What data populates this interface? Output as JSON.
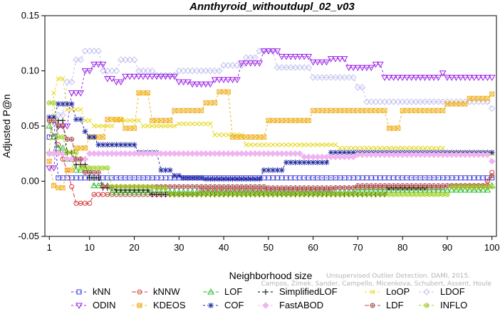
{
  "chart_data": {
    "type": "line",
    "title": "Annthyroid_withoutdupl_02_v03",
    "xlabel": "Neighborhood size",
    "ylabel": "Adjusted P@n",
    "xlim": [
      0,
      101
    ],
    "ylim": [
      -0.05,
      0.15
    ],
    "xticks": [
      "1",
      "10",
      "20",
      "30",
      "40",
      "50",
      "60",
      "70",
      "80",
      "90",
      "100"
    ],
    "yticks": [
      "-0.05",
      "0.00",
      "0.05",
      "0.10",
      "0.15"
    ],
    "grid": false,
    "legend_position": "bottom",
    "series": [
      {
        "name": "kNN",
        "color": "#3a3adf",
        "marker": "square",
        "dash": "3,3",
        "points": [
          [
            1,
            0.04
          ],
          [
            2,
            0.055
          ],
          [
            3,
            0.003
          ],
          [
            10,
            0.003
          ],
          [
            30,
            0.003
          ],
          [
            60,
            0.003
          ],
          [
            100,
            0.003
          ]
        ]
      },
      {
        "name": "kNNW",
        "color": "#d93a3a",
        "marker": "circle",
        "dash": "6,3",
        "points": [
          [
            1,
            0.055
          ],
          [
            2,
            0.04
          ],
          [
            3,
            0.033
          ],
          [
            4,
            0.02
          ],
          [
            5,
            0.01
          ],
          [
            6,
            -0.005
          ],
          [
            7,
            -0.02
          ],
          [
            10,
            -0.02
          ],
          [
            11,
            -0.012
          ],
          [
            20,
            -0.012
          ],
          [
            35,
            -0.008
          ],
          [
            65,
            -0.006
          ],
          [
            90,
            -0.004
          ],
          [
            99,
            0.0
          ],
          [
            100,
            0.008
          ]
        ]
      },
      {
        "name": "LOF",
        "color": "#2db82d",
        "marker": "triangle",
        "dash": "6,3",
        "points": [
          [
            1,
            0.05
          ],
          [
            2,
            0.04
          ],
          [
            3,
            0.03
          ],
          [
            5,
            0.02
          ],
          [
            7,
            0.01
          ],
          [
            10,
            0.01
          ],
          [
            11,
            -0.004
          ],
          [
            14,
            -0.004
          ],
          [
            15,
            -0.01
          ],
          [
            30,
            -0.01
          ],
          [
            60,
            -0.01
          ],
          [
            70,
            -0.008
          ],
          [
            100,
            -0.004
          ]
        ]
      },
      {
        "name": "SimplifiedLOF",
        "color": "#000000",
        "marker": "plus",
        "dash": "3,3",
        "points": [
          [
            1,
            0.026
          ],
          [
            3,
            0.055
          ],
          [
            5,
            0.026
          ],
          [
            7,
            0.015
          ],
          [
            10,
            0.003
          ],
          [
            13,
            -0.006
          ],
          [
            16,
            -0.008
          ],
          [
            23,
            -0.008
          ],
          [
            24,
            -0.012
          ],
          [
            40,
            -0.012
          ],
          [
            76,
            -0.012
          ],
          [
            77,
            -0.006
          ],
          [
            85,
            -0.006
          ]
        ]
      },
      {
        "name": "LoOP",
        "color": "#e6d81f",
        "marker": "x",
        "dash": "3,3",
        "points": [
          [
            1,
            0.025
          ],
          [
            2,
            0.08
          ],
          [
            3,
            0.093
          ],
          [
            5,
            0.065
          ],
          [
            9,
            0.055
          ],
          [
            11,
            0.05
          ],
          [
            16,
            0.055
          ],
          [
            22,
            0.05
          ],
          [
            30,
            0.052
          ],
          [
            38,
            0.042
          ],
          [
            45,
            0.033
          ],
          [
            60,
            0.033
          ],
          [
            66,
            0.03
          ],
          [
            90,
            0.025
          ],
          [
            100,
            0.025
          ]
        ]
      },
      {
        "name": "LDOF",
        "color": "#c0c0f0",
        "marker": "diamond",
        "dash": "3,3",
        "points": [
          [
            1,
            0.025
          ],
          [
            3,
            0.06
          ],
          [
            5,
            0.09
          ],
          [
            7,
            0.11
          ],
          [
            9,
            0.118
          ],
          [
            13,
            0.1
          ],
          [
            17,
            0.11
          ],
          [
            21,
            0.1
          ],
          [
            25,
            0.096
          ],
          [
            30,
            0.1
          ],
          [
            35,
            0.1
          ],
          [
            40,
            0.105
          ],
          [
            45,
            0.112
          ],
          [
            48,
            0.118
          ],
          [
            52,
            0.103
          ],
          [
            59,
            0.103
          ],
          [
            60,
            0.094
          ],
          [
            67,
            0.094
          ],
          [
            70,
            0.085
          ],
          [
            72,
            0.072
          ],
          [
            100,
            0.066
          ]
        ]
      },
      {
        "name": "ODIN",
        "color": "#9b1fe6",
        "marker": "triangle-down",
        "dash": "3,3",
        "points": [
          [
            1,
            0.012
          ],
          [
            3,
            0.05
          ],
          [
            6,
            0.08
          ],
          [
            9,
            0.1
          ],
          [
            11,
            0.106
          ],
          [
            14,
            0.093
          ],
          [
            16,
            0.09
          ],
          [
            18,
            0.095
          ],
          [
            24,
            0.095
          ],
          [
            30,
            0.09
          ],
          [
            33,
            0.088
          ],
          [
            38,
            0.092
          ],
          [
            44,
            0.107
          ],
          [
            49,
            0.118
          ],
          [
            53,
            0.113
          ],
          [
            60,
            0.108
          ],
          [
            64,
            0.111
          ],
          [
            68,
            0.103
          ],
          [
            74,
            0.106
          ],
          [
            76,
            0.094
          ],
          [
            89,
            0.098
          ],
          [
            90,
            0.094
          ],
          [
            100,
            0.094
          ]
        ]
      },
      {
        "name": "KDEOS",
        "color": "#f0b020",
        "marker": "box-x",
        "dash": "3,3",
        "points": [
          [
            1,
            0.018
          ],
          [
            2,
            -0.004
          ],
          [
            3,
            -0.006
          ],
          [
            5,
            0.01
          ],
          [
            7,
            0.03
          ],
          [
            10,
            0.04
          ],
          [
            14,
            0.056
          ],
          [
            18,
            0.048
          ],
          [
            21,
            0.08
          ],
          [
            24,
            0.055
          ],
          [
            29,
            0.064
          ],
          [
            33,
            0.064
          ],
          [
            36,
            0.071
          ],
          [
            39,
            0.081
          ],
          [
            42,
            0.04
          ],
          [
            46,
            0.04
          ],
          [
            50,
            0.055
          ],
          [
            56,
            0.055
          ],
          [
            60,
            0.064
          ],
          [
            74,
            0.064
          ],
          [
            77,
            0.048
          ],
          [
            80,
            0.064
          ],
          [
            90,
            0.07
          ],
          [
            95,
            0.075
          ],
          [
            100,
            0.079
          ]
        ]
      },
      {
        "name": "COF",
        "color": "#202aa0",
        "marker": "asterisk",
        "dash": "3,3",
        "points": [
          [
            1,
            0.058
          ],
          [
            3,
            0.07
          ],
          [
            7,
            0.056
          ],
          [
            9,
            0.045
          ],
          [
            10,
            0.04
          ],
          [
            12,
            0.033
          ],
          [
            20,
            0.033
          ],
          [
            21,
            0.026
          ],
          [
            26,
            0.01
          ],
          [
            29,
            0.005
          ],
          [
            31,
            0.003
          ],
          [
            36,
            0.002
          ],
          [
            49,
            0.01
          ],
          [
            54,
            0.017
          ],
          [
            62,
            0.017
          ],
          [
            64,
            0.026
          ],
          [
            100,
            0.026
          ]
        ]
      },
      {
        "name": "FastABOD",
        "color": "#f0b4f0",
        "marker": "diamond-filled",
        "dash": "3,3",
        "points": [
          [
            1,
            0.025
          ],
          [
            5,
            0.02
          ],
          [
            10,
            0.025
          ],
          [
            20,
            0.025
          ],
          [
            40,
            0.025
          ],
          [
            58,
            0.022
          ],
          [
            70,
            0.024
          ],
          [
            80,
            0.024
          ],
          [
            100,
            0.018
          ]
        ]
      },
      {
        "name": "LDF",
        "color": "#a85050",
        "marker": "circle-plus",
        "dash": "6,3",
        "points": [
          [
            1,
            0.055
          ],
          [
            3,
            0.05
          ],
          [
            5,
            0.038
          ],
          [
            7,
            0.02
          ],
          [
            9,
            0.008
          ],
          [
            13,
            -0.005
          ],
          [
            30,
            -0.005
          ],
          [
            50,
            -0.006
          ],
          [
            70,
            -0.004
          ],
          [
            100,
            0.005
          ]
        ]
      },
      {
        "name": "INFLO",
        "color": "#a0d020",
        "marker": "circle-x",
        "dash": "3,3",
        "points": [
          [
            1,
            0.071
          ],
          [
            3,
            0.04
          ],
          [
            5,
            0.026
          ],
          [
            8,
            0.012
          ],
          [
            10,
            0.012
          ],
          [
            15,
            -0.005
          ],
          [
            25,
            -0.006
          ],
          [
            28,
            -0.012
          ],
          [
            90,
            -0.012
          ],
          [
            91,
            -0.005
          ],
          [
            100,
            -0.005
          ]
        ]
      }
    ]
  },
  "watermark": {
    "line1": "Unsupervised Outlier Detection. DAMI, 2015.",
    "line2": "Campos, Zimek, Sander, Campello, Micenkova, Schubert, Assent, Houle"
  }
}
